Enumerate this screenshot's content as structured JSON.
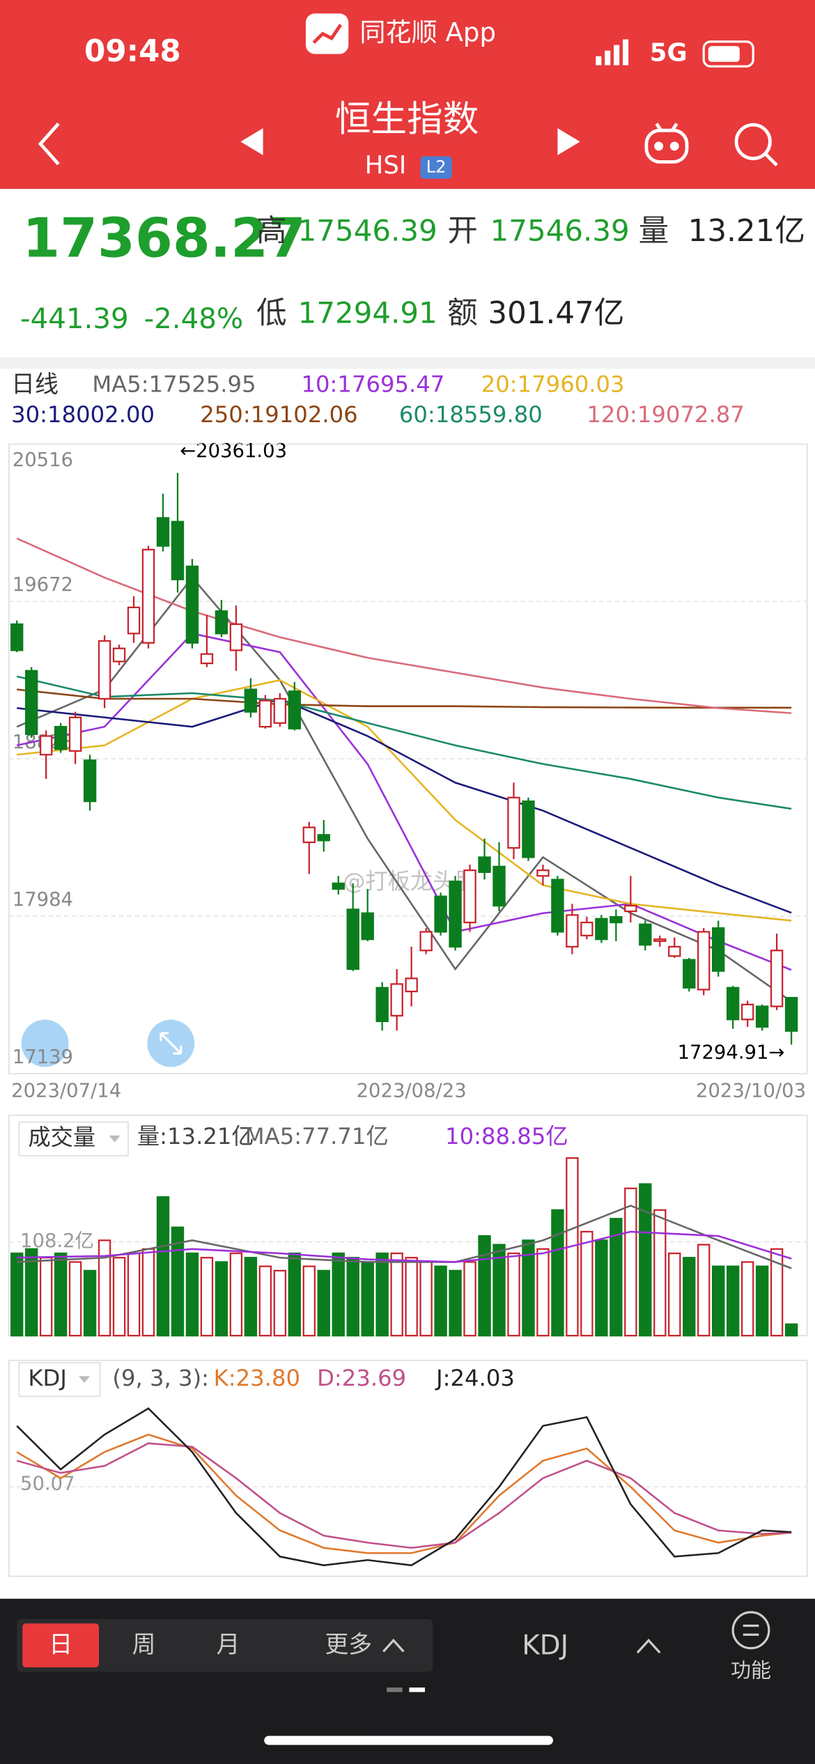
{
  "status": {
    "time": "09:48",
    "app": "同花顺 App",
    "network": "5G"
  },
  "nav": {
    "title": "恒生指数",
    "code": "HSI",
    "badge": "L2"
  },
  "quote": {
    "price": "17368.27",
    "change": "-441.39",
    "change_pct": "-2.48%",
    "high": {
      "label": "高",
      "value": "17546.39"
    },
    "open": {
      "label": "开",
      "value": "17546.39"
    },
    "volume": {
      "label": "量",
      "value": "13.21亿"
    },
    "low": {
      "label": "低",
      "value": "17294.91"
    },
    "amount": {
      "label": "额",
      "value": "301.47亿"
    }
  },
  "watermark": "@打板龙头股",
  "chart_data": [
    {
      "type": "candlestick",
      "title": "日线",
      "categories": [
        "2023/07/14",
        null,
        null,
        null,
        null,
        null,
        null,
        null,
        null,
        null,
        null,
        null,
        null,
        null,
        null,
        null,
        null,
        null,
        null,
        null,
        null,
        null,
        null,
        null,
        null,
        null,
        null,
        "2023/08/23",
        null,
        null,
        null,
        null,
        null,
        null,
        null,
        null,
        null,
        null,
        null,
        null,
        null,
        null,
        null,
        null,
        null,
        null,
        null,
        null,
        null,
        null,
        null,
        null,
        null,
        "2023/10/03"
      ],
      "open": [
        19550,
        19300,
        18850,
        19000,
        18870,
        18820,
        19150,
        19350,
        19500,
        19450,
        20120,
        20100,
        19860,
        19340,
        19620,
        19410,
        19200,
        19000,
        19020,
        19190,
        18380,
        18420,
        18160,
        18020,
        18000,
        17600,
        17450,
        17580,
        17800,
        18090,
        18170,
        17950,
        18300,
        18250,
        18350,
        18600,
        18200,
        18180,
        17820,
        17880,
        17970,
        17980,
        18010,
        17940,
        17850,
        17770,
        17750,
        17590,
        17920,
        17600,
        17430,
        17500,
        17500,
        17546.39
      ],
      "high": [
        19570,
        19320,
        18980,
        19020,
        19080,
        18850,
        19490,
        19440,
        19700,
        19970,
        20250,
        20361.03,
        19900,
        19600,
        19680,
        19650,
        19260,
        19170,
        19180,
        19240,
        18490,
        18500,
        18200,
        18160,
        18130,
        17630,
        17700,
        17820,
        17920,
        18110,
        18200,
        18260,
        18400,
        18380,
        18700,
        18620,
        18260,
        18200,
        18050,
        17980,
        17990,
        18020,
        18200,
        17960,
        17880,
        17870,
        17760,
        17920,
        17960,
        17610,
        17530,
        17510,
        17890,
        17546.39
      ],
      "low": [
        19400,
        18940,
        18720,
        18860,
        18800,
        18550,
        19100,
        19330,
        19450,
        19420,
        19940,
        19720,
        19420,
        19320,
        19480,
        19300,
        19050,
        18990,
        19000,
        18980,
        18210,
        18330,
        18100,
        17690,
        17850,
        17370,
        17370,
        17500,
        17780,
        17880,
        17800,
        17900,
        18180,
        18010,
        18290,
        18280,
        18150,
        17880,
        17780,
        17860,
        17840,
        17850,
        17950,
        17800,
        17820,
        17760,
        17580,
        17560,
        17660,
        17380,
        17390,
        17370,
        17480,
        17294.91
      ],
      "close": [
        19410,
        18960,
        18950,
        18880,
        19050,
        18600,
        19460,
        19420,
        19640,
        19950,
        19970,
        19790,
        19450,
        19390,
        19500,
        19550,
        19080,
        19140,
        19150,
        18990,
        18460,
        18390,
        18130,
        17700,
        17860,
        17420,
        17620,
        17650,
        17900,
        17900,
        17820,
        18230,
        18220,
        18040,
        18620,
        18300,
        18230,
        17900,
        17990,
        17950,
        17860,
        17950,
        18040,
        17830,
        17860,
        17820,
        17600,
        17900,
        17690,
        17430,
        17510,
        17390,
        17800,
        17368.27
      ],
      "up_color": "#c8232c",
      "down_color": "#0b7d1e",
      "ylim": [
        17139,
        20516
      ],
      "yticks": [
        20516,
        19672,
        18828,
        17984,
        17139
      ],
      "grid": true,
      "annotations": [
        "←20361.03",
        "17294.91→"
      ],
      "series": [
        {
          "name": "MA5:17525.95",
          "color": "#666666",
          "x": [
            0,
            6,
            12,
            18,
            24,
            30,
            36,
            42,
            48,
            53
          ],
          "values": [
            19000,
            19200,
            19800,
            19250,
            18400,
            17700,
            18300,
            18000,
            17800,
            17525.95
          ]
        },
        {
          "name": "10:17695.47",
          "color": "#9b30d9",
          "x": [
            0,
            6,
            12,
            18,
            24,
            30,
            36,
            42,
            48,
            53
          ],
          "values": [
            18900,
            19000,
            19500,
            19400,
            18800,
            17900,
            18000,
            18050,
            17850,
            17695.47
          ]
        },
        {
          "name": "20:17960.03",
          "color": "#e6b422",
          "x": [
            0,
            6,
            12,
            18,
            24,
            30,
            36,
            42,
            48,
            53
          ],
          "values": [
            18850,
            18900,
            19150,
            19250,
            19000,
            18500,
            18150,
            18050,
            18000,
            17960.03
          ]
        },
        {
          "name": "30:18002.00",
          "color": "#1a1a7a",
          "x": [
            0,
            6,
            12,
            18,
            24,
            30,
            36,
            42,
            48,
            53
          ],
          "values": [
            19100,
            19050,
            19000,
            19150,
            18950,
            18700,
            18550,
            18350,
            18150,
            18002
          ]
        },
        {
          "name": "250:19102.06",
          "color": "#8b4513",
          "x": [
            0,
            6,
            12,
            18,
            24,
            30,
            36,
            42,
            48,
            53
          ],
          "values": [
            19200,
            19150,
            19150,
            19120,
            19110,
            19110,
            19105,
            19103,
            19102,
            19102.06
          ]
        },
        {
          "name": "60:18559.80",
          "color": "#1a8a6a",
          "x": [
            0,
            6,
            12,
            18,
            24,
            30,
            36,
            42,
            48,
            53
          ],
          "values": [
            19270,
            19160,
            19180,
            19140,
            19020,
            18900,
            18800,
            18720,
            18620,
            18559.8
          ]
        },
        {
          "name": "120:19072.87",
          "color": "#d96a7a",
          "x": [
            0,
            6,
            12,
            18,
            24,
            30,
            36,
            42,
            48,
            53
          ],
          "values": [
            20010,
            19800,
            19620,
            19480,
            19370,
            19290,
            19210,
            19150,
            19100,
            19072.87
          ]
        }
      ]
    },
    {
      "type": "bar",
      "title": "成交量",
      "ylim": [
        0,
        218
      ],
      "yticks": [
        {
          "value": 108.2,
          "label": "108.2亿"
        }
      ],
      "series": [
        {
          "name": "量:13.21亿",
          "values": [
            95,
            100,
            90,
            95,
            85,
            75,
            110,
            90,
            95,
            100,
            160,
            125,
            95,
            90,
            85,
            95,
            90,
            80,
            75,
            95,
            80,
            75,
            95,
            90,
            85,
            95,
            95,
            90,
            85,
            80,
            75,
            85,
            115,
            105,
            95,
            110,
            100,
            145,
            205,
            120,
            110,
            135,
            170,
            175,
            145,
            95,
            90,
            105,
            80,
            80,
            85,
            80,
            100,
            13.21
          ]
        },
        {
          "name": "MA5:77.71亿",
          "color": "#666666",
          "x": [
            0,
            6,
            12,
            18,
            24,
            30,
            36,
            42,
            48,
            53
          ],
          "values": [
            85,
            90,
            110,
            90,
            85,
            85,
            110,
            150,
            110,
            77.71
          ]
        },
        {
          "name": "10:88.85亿",
          "color": "#9b30d9",
          "x": [
            0,
            6,
            12,
            18,
            24,
            30,
            36,
            42,
            48,
            53
          ],
          "values": [
            90,
            92,
            100,
            95,
            88,
            85,
            95,
            120,
            115,
            88.85
          ]
        }
      ]
    },
    {
      "type": "line",
      "title": "KDJ",
      "params": "(9, 3, 3):",
      "ylim": [
        0,
        100
      ],
      "yticks": [
        50.07
      ],
      "series": [
        {
          "name": "K:23.80",
          "color": "#e0782c",
          "x": [
            0,
            3,
            6,
            9,
            12,
            15,
            18,
            21,
            24,
            27,
            30,
            33,
            36,
            39,
            42,
            45,
            48,
            51,
            53
          ],
          "values": [
            70,
            55,
            70,
            80,
            72,
            45,
            25,
            15,
            12,
            12,
            18,
            45,
            65,
            72,
            50,
            25,
            18,
            22,
            23.8
          ]
        },
        {
          "name": "D:23.69",
          "color": "#c0508a",
          "x": [
            0,
            3,
            6,
            9,
            12,
            15,
            18,
            21,
            24,
            27,
            30,
            33,
            36,
            39,
            42,
            45,
            48,
            51,
            53
          ],
          "values": [
            65,
            58,
            62,
            75,
            73,
            55,
            35,
            22,
            18,
            15,
            18,
            35,
            55,
            65,
            55,
            35,
            25,
            23,
            23.69
          ]
        },
        {
          "name": "J:24.03",
          "color": "#222222",
          "x": [
            0,
            3,
            6,
            9,
            12,
            15,
            18,
            21,
            24,
            27,
            30,
            33,
            36,
            39,
            42,
            45,
            48,
            51,
            53
          ],
          "values": [
            85,
            60,
            80,
            95,
            70,
            35,
            10,
            5,
            8,
            5,
            20,
            50,
            85,
            90,
            40,
            10,
            12,
            25,
            24.03
          ]
        }
      ]
    }
  ],
  "bottom_bar": {
    "tabs": [
      "日",
      "周",
      "月",
      "更多"
    ],
    "indicator": "KDJ",
    "function": "功能"
  }
}
